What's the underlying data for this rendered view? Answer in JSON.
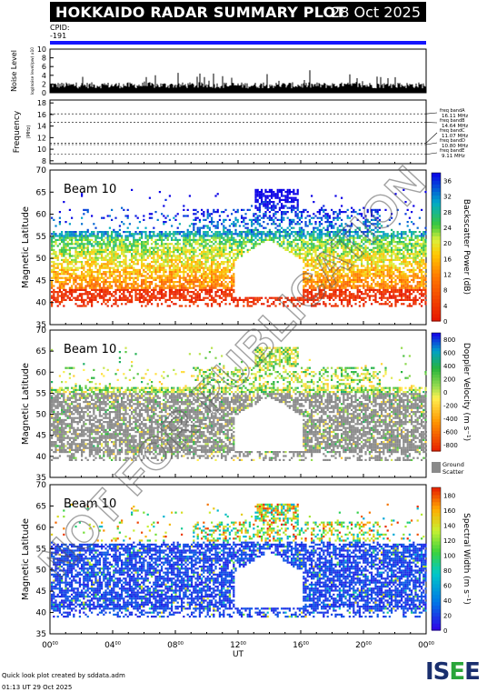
{
  "header": {
    "title": "HOKKAIDO RADAR SUMMARY PLOT",
    "date": "28 Oct 2025"
  },
  "cpid": {
    "label": "CPID:",
    "value": "-191",
    "bar_color": "#1515ff"
  },
  "watermark": "NOT FOR PUBLICATION",
  "x_axis": {
    "label": "UT",
    "ticks": [
      "00",
      "04",
      "08",
      "12",
      "16",
      "20",
      "00"
    ],
    "tick_suffix": "00"
  },
  "footer": {
    "line1": "Quick look plot created by sddata.adm",
    "line2": "01:13 UT 29 Oct 2025"
  },
  "logo": {
    "text_a": "IS",
    "text_b": "E",
    "text_c": "E"
  },
  "chart_data": [
    {
      "type": "bar",
      "name": "noise",
      "ylabel": "Noise Level",
      "ysublabel": "log(noise level/pw) x10",
      "ylim": [
        0,
        10
      ],
      "yticks": [
        "0",
        "2",
        "4",
        "6",
        "8",
        "10"
      ],
      "description_values": {
        "typical": 1.5,
        "max_spike": 4.5
      }
    },
    {
      "type": "line",
      "name": "frequency",
      "ylabel": "Frequency",
      "ysublabel": "(MHz)",
      "ylim": [
        7.5,
        18.5
      ],
      "yticks": [
        "8",
        "10",
        "12",
        "14",
        "16",
        "18"
      ],
      "bands": [
        {
          "label": "freq bandA",
          "value_label": "16.11 MHz",
          "value": 16.11
        },
        {
          "label": "freq bandB",
          "value_label": "14.64 MHz",
          "value": 14.64
        },
        {
          "label": "freq bandC",
          "value_label": "11.07 MHz",
          "value": 11.07
        },
        {
          "label": "freq bandD",
          "value_label": "10.80 MHz",
          "value": 10.8
        },
        {
          "label": "freq bandE",
          "value_label": "9.11 MHz",
          "value": 9.11
        }
      ]
    },
    {
      "type": "heatmap",
      "name": "power",
      "beam_label": "Beam 10",
      "ylabel": "Magnetic Latitude",
      "ylim": [
        35,
        70
      ],
      "yticks": [
        "35",
        "40",
        "45",
        "50",
        "55",
        "60",
        "65",
        "70"
      ],
      "colorbar_label": "Backscatter Power (dB)",
      "colorbar_ticks": [
        "0",
        "4",
        "8",
        "12",
        "16",
        "20",
        "24",
        "28",
        "32",
        "36"
      ],
      "colorbar_range": [
        0,
        38
      ]
    },
    {
      "type": "heatmap",
      "name": "velocity",
      "beam_label": "Beam 10",
      "ylabel": "Magnetic Latitude",
      "ylim": [
        35,
        70
      ],
      "yticks": [
        "35",
        "40",
        "45",
        "50",
        "55",
        "60",
        "65",
        "70"
      ],
      "colorbar_label": "Doppler Velocity (m s⁻¹)",
      "colorbar_ticks": [
        "-800",
        "-600",
        "-400",
        "-200",
        "0",
        "200",
        "400",
        "600",
        "800"
      ],
      "colorbar_range": [
        -900,
        900
      ],
      "ground_scatter_label": "Ground Scatter"
    },
    {
      "type": "heatmap",
      "name": "width",
      "beam_label": "Beam 10",
      "ylabel": "Magnetic Latitude",
      "ylim": [
        35,
        70
      ],
      "yticks": [
        "35",
        "40",
        "45",
        "50",
        "55",
        "60",
        "65",
        "70"
      ],
      "colorbar_label": "Spectral Width (m s⁻¹)",
      "colorbar_ticks": [
        "0",
        "20",
        "40",
        "60",
        "80",
        "100",
        "120",
        "140",
        "160",
        "180"
      ],
      "colorbar_range": [
        0,
        190
      ]
    }
  ]
}
